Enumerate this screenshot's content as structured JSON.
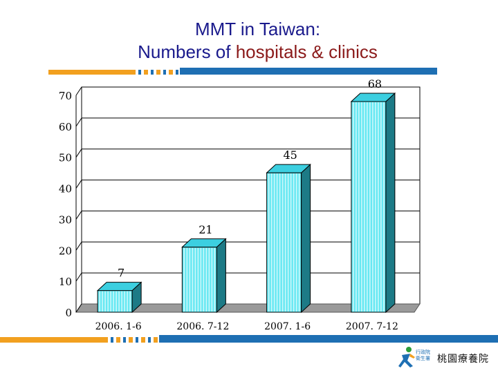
{
  "title": {
    "line1": "MMT in Taiwan:",
    "line2_prefix": "Numbers of ",
    "line2_accent": "hospitals & clinics"
  },
  "colors": {
    "title_blue": "#1a1a8c",
    "title_red": "#8b1a1a",
    "stripe_orange": "#f2a01f",
    "stripe_blue": "#1e6fb3",
    "bar_front": "#66e8f2",
    "bar_side": "#1d7a86",
    "bar_top": "#3ccfe0",
    "floor": "#9a9a9a"
  },
  "logo": {
    "org_small": "行政院 衛生署",
    "org_name": "桃園療養院"
  },
  "chart_data": {
    "type": "bar",
    "categories": [
      "2006. 1-6",
      "2006. 7-12",
      "2007. 1-6",
      "2007. 7-12"
    ],
    "values": [
      7,
      21,
      45,
      68
    ],
    "data_labels": [
      "7",
      "21",
      "45",
      "68"
    ],
    "y_ticks": [
      "0",
      "10",
      "20",
      "30",
      "40",
      "50",
      "60",
      "70"
    ],
    "ylim": [
      0,
      70
    ],
    "grid": true,
    "legend": "none",
    "title": "",
    "xlabel": "",
    "ylabel": ""
  }
}
